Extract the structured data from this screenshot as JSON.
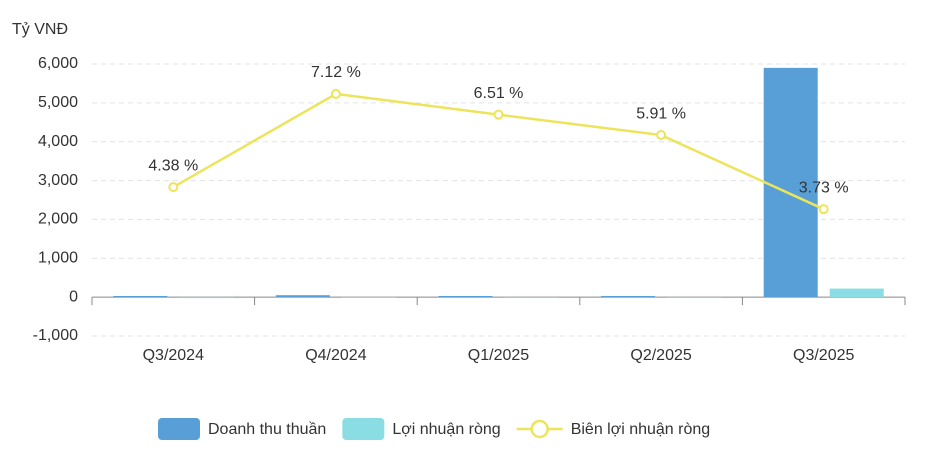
{
  "chart_data": {
    "type": "bar-line",
    "y_axis_label": "Tỷ VNĐ",
    "categories": [
      "Q3/2024",
      "Q4/2024",
      "Q1/2025",
      "Q2/2025",
      "Q3/2025"
    ],
    "series": [
      {
        "name": "Doanh thu thuần",
        "type": "bar",
        "color": "#579fd6",
        "values": [
          30,
          50,
          30,
          30,
          5900
        ]
      },
      {
        "name": "Lợi nhuận ròng",
        "type": "bar",
        "color": "#8adde3",
        "values": [
          1,
          4,
          2,
          2,
          220
        ]
      },
      {
        "name": "Biên lợi nhuận ròng",
        "type": "line",
        "axis": "y2",
        "color": "#ece55b",
        "values": [
          4.38,
          7.12,
          6.51,
          5.91,
          3.73
        ],
        "value_labels": [
          "4.38 %",
          "7.12 %",
          "6.51 %",
          "5.91 %",
          "3.73 %"
        ]
      }
    ],
    "ylim": [
      -1000,
      6000
    ],
    "yticks": [
      {
        "value": 6000,
        "label": "6,000"
      },
      {
        "value": 5000,
        "label": "5,000"
      },
      {
        "value": 4000,
        "label": "4,000"
      },
      {
        "value": 3000,
        "label": "3,000"
      },
      {
        "value": 2000,
        "label": "2,000"
      },
      {
        "value": 1000,
        "label": "1,000"
      },
      0,
      {
        "value": -1000,
        "label": "-1,000"
      }
    ],
    "y2lim": [
      0,
      8
    ],
    "grid": true,
    "legend": "bottom"
  }
}
